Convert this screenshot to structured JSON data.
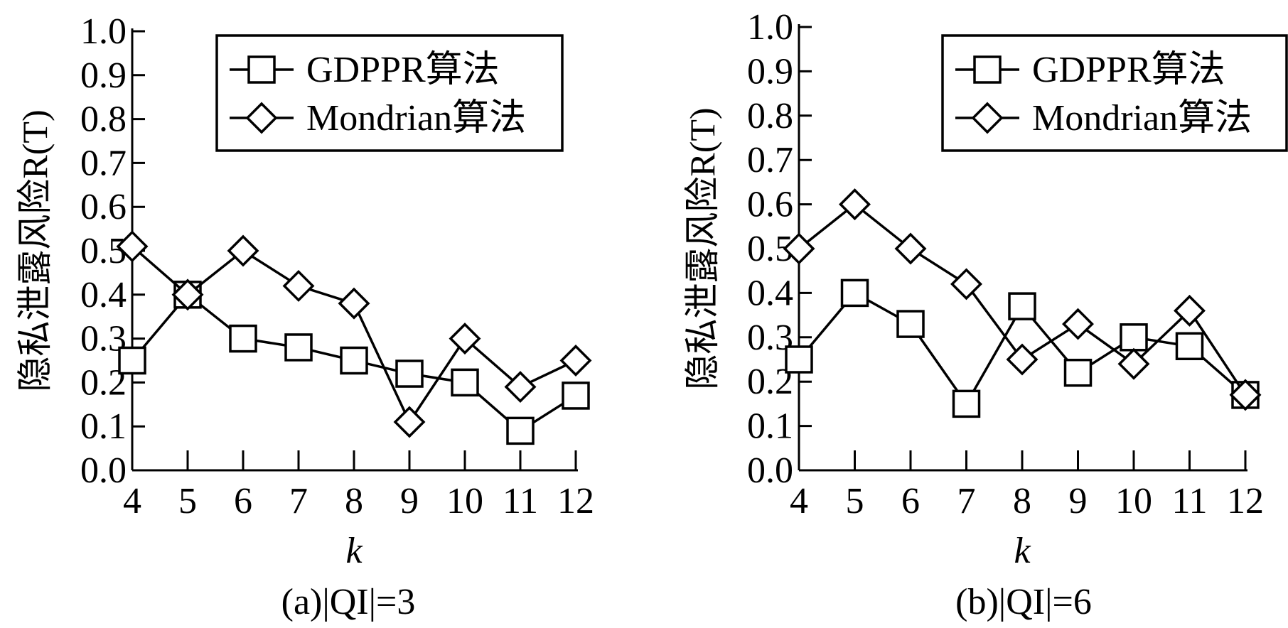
{
  "chart_data": [
    {
      "type": "line",
      "caption": "(a)|QI|=3",
      "xlabel": "k",
      "ylabel": "隐私泄露风险R(T)",
      "ylim": [
        0.0,
        1.0
      ],
      "yticks": [
        "0.0",
        "0.1",
        "0.2",
        "0.3",
        "0.4",
        "0.5",
        "0.6",
        "0.7",
        "0.8",
        "0.9",
        "1.0"
      ],
      "categories": [
        "4",
        "5",
        "6",
        "7",
        "8",
        "9",
        "10",
        "11",
        "12"
      ],
      "legend_position": "top-right",
      "grid": false,
      "series": [
        {
          "name": "GDPPR算法",
          "marker": "square",
          "values": [
            0.25,
            0.4,
            0.3,
            0.28,
            0.25,
            0.22,
            0.2,
            0.09,
            0.17
          ]
        },
        {
          "name": "Mondrian算法",
          "marker": "diamond",
          "values": [
            0.51,
            0.4,
            0.5,
            0.42,
            0.38,
            0.11,
            0.3,
            0.19,
            0.25
          ]
        }
      ]
    },
    {
      "type": "line",
      "caption": "(b)|QI|=6",
      "xlabel": "k",
      "ylabel": "隐私泄露风险R(T)",
      "ylim": [
        0.0,
        1.0
      ],
      "yticks": [
        "0.0",
        "0.1",
        "0.2",
        "0.3",
        "0.4",
        "0.5",
        "0.6",
        "0.7",
        "0.8",
        "0.9",
        "1.0"
      ],
      "categories": [
        "4",
        "5",
        "6",
        "7",
        "8",
        "9",
        "10",
        "11",
        "12"
      ],
      "legend_position": "top-right",
      "grid": false,
      "series": [
        {
          "name": "GDPPR算法",
          "marker": "square",
          "values": [
            0.25,
            0.4,
            0.33,
            0.15,
            0.37,
            0.22,
            0.3,
            0.28,
            0.17
          ]
        },
        {
          "name": "Mondrian算法",
          "marker": "diamond",
          "values": [
            0.5,
            0.6,
            0.5,
            0.42,
            0.25,
            0.33,
            0.24,
            0.36,
            0.17
          ]
        }
      ]
    }
  ],
  "colors": {
    "line": "#000000",
    "background": "#ffffff"
  }
}
